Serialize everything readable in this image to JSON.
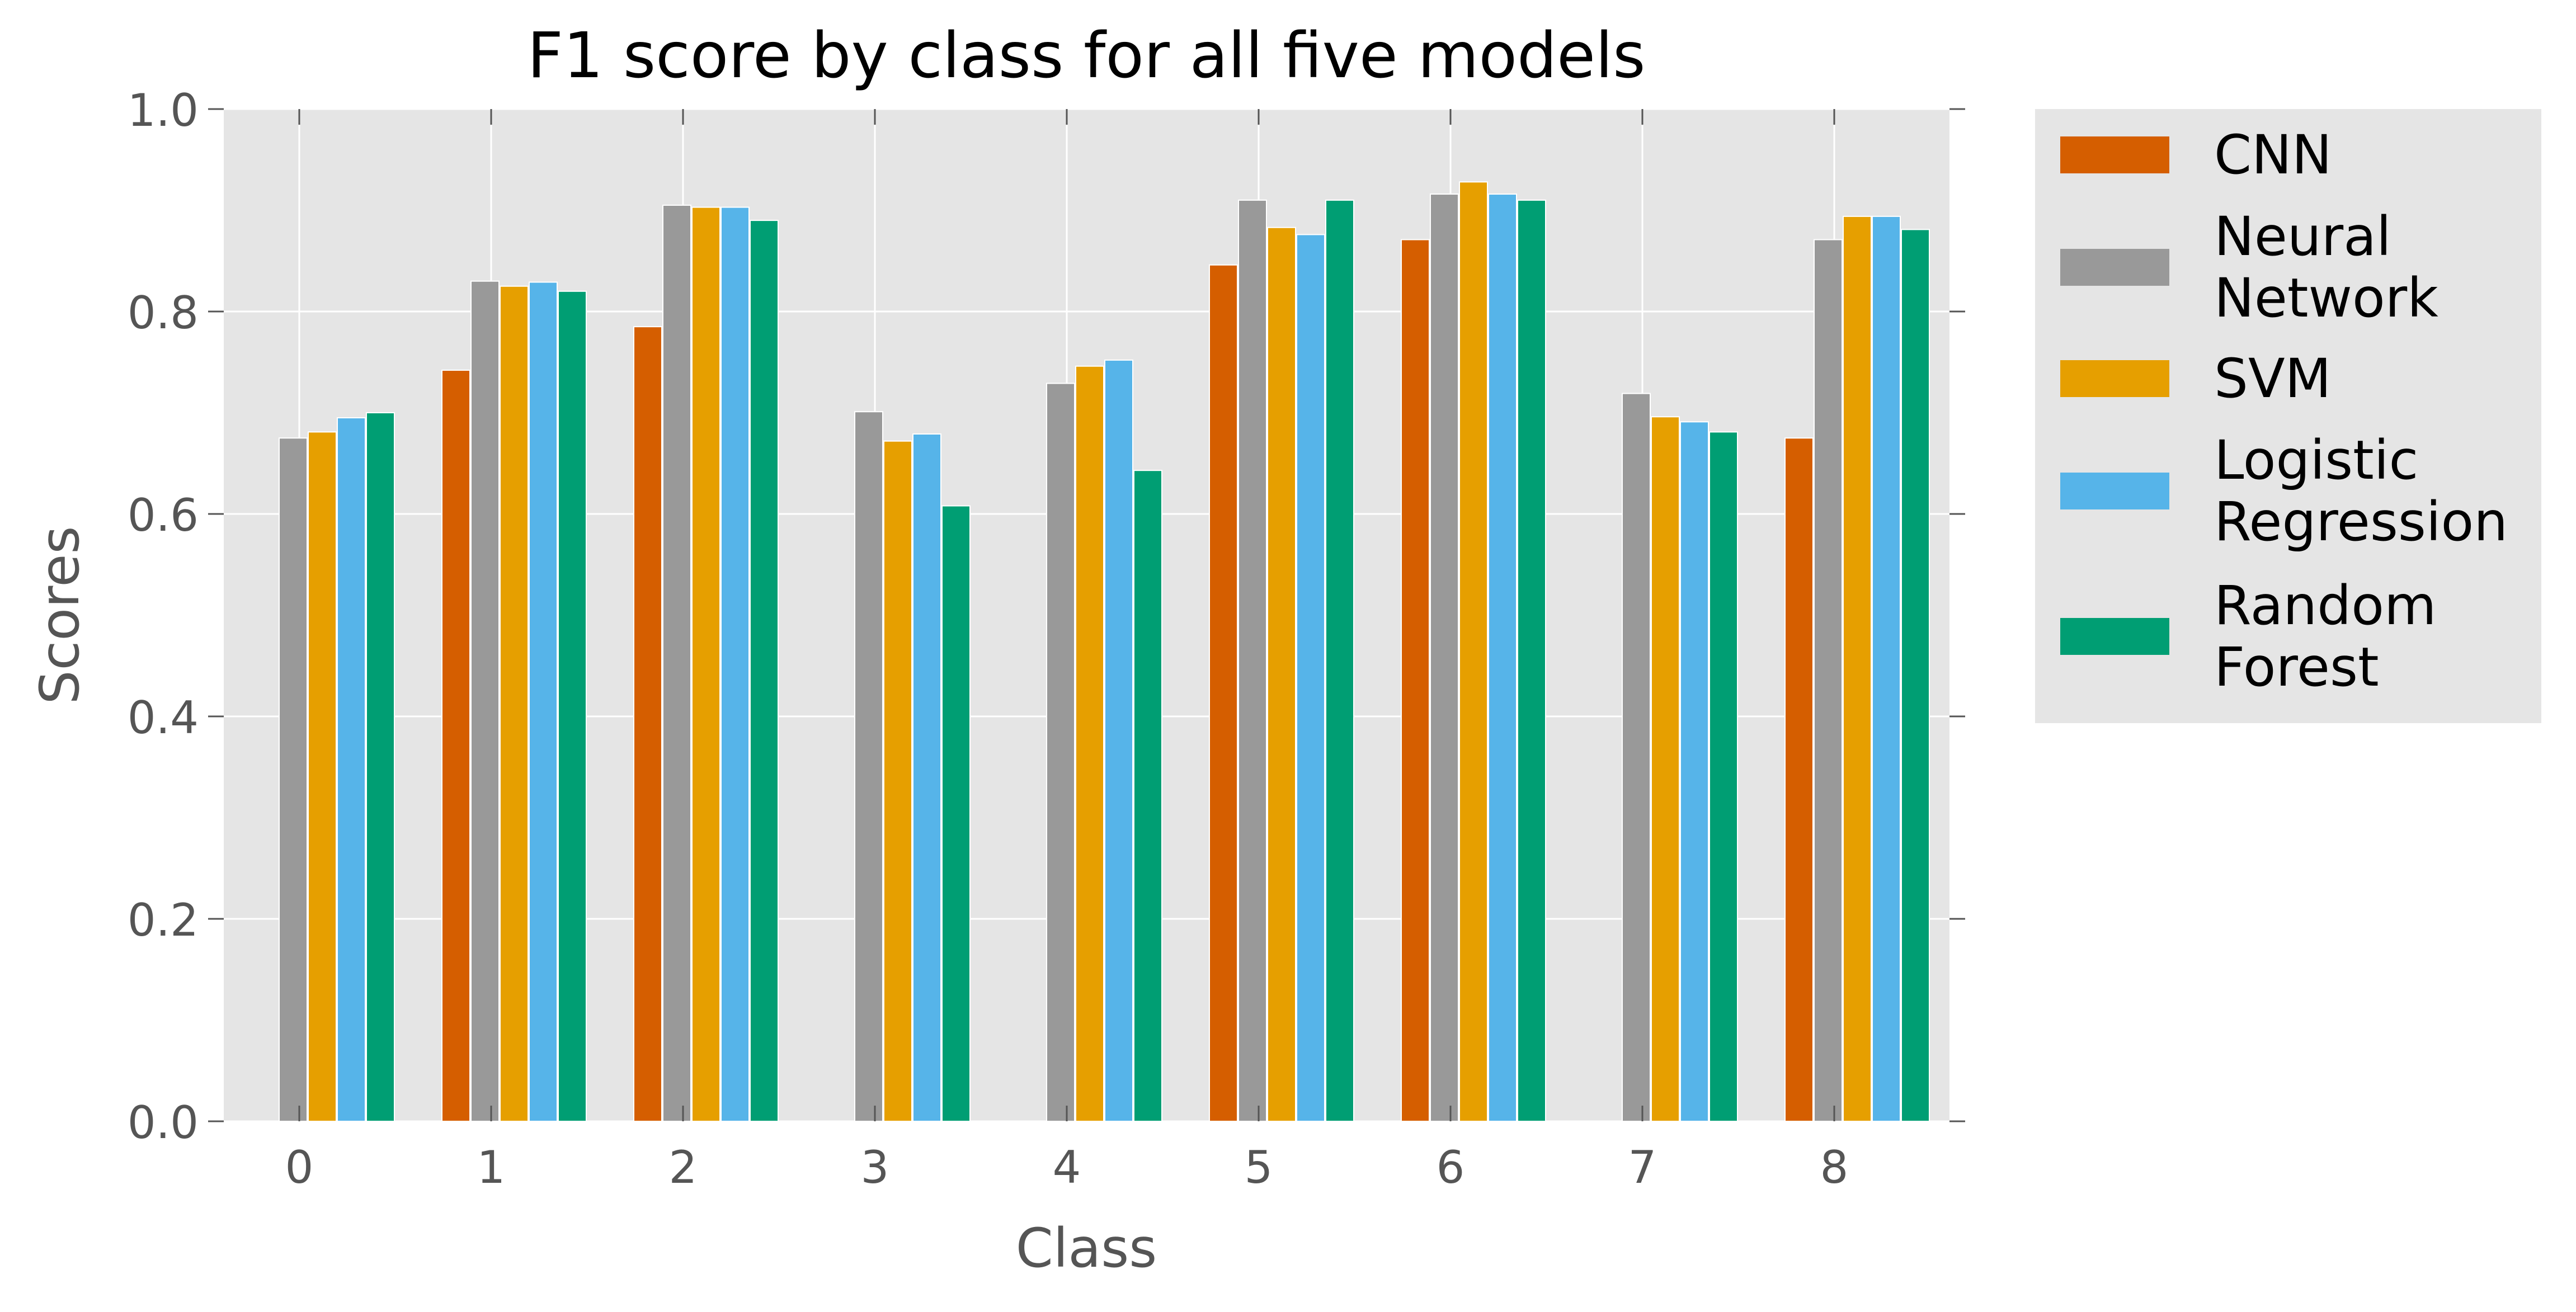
{
  "chart_data": {
    "type": "bar",
    "title": "F1 score by class for all five models",
    "xlabel": "Class",
    "ylabel": "Scores",
    "categories": [
      "0",
      "1",
      "2",
      "3",
      "4",
      "5",
      "6",
      "7",
      "8"
    ],
    "ylim": [
      0,
      1.0
    ],
    "yticks": [
      "0.0",
      "0.2",
      "0.4",
      "0.6",
      "0.8",
      "1.0"
    ],
    "grid": true,
    "legend_position": "outside-right-top",
    "series": [
      {
        "name": "CNN",
        "color": "#d55e00",
        "values": [
          0,
          0.742,
          0.785,
          0,
          0,
          0.846,
          0.871,
          0,
          0.675
        ]
      },
      {
        "name": "Neural Network",
        "color": "#999999",
        "values": [
          0.675,
          0.83,
          0.905,
          0.701,
          0.729,
          0.91,
          0.916,
          0.719,
          0.871
        ]
      },
      {
        "name": "SVM",
        "color": "#e69f00",
        "values": [
          0.681,
          0.825,
          0.903,
          0.672,
          0.746,
          0.883,
          0.928,
          0.696,
          0.894
        ]
      },
      {
        "name": "Logistic Regression",
        "color": "#56b4e9",
        "values": [
          0.695,
          0.829,
          0.903,
          0.679,
          0.752,
          0.876,
          0.916,
          0.691,
          0.894
        ]
      },
      {
        "name": "Random Forest",
        "color": "#009e73",
        "values": [
          0.7,
          0.82,
          0.89,
          0.608,
          0.643,
          0.91,
          0.91,
          0.681,
          0.881
        ]
      }
    ],
    "legend_lines": [
      [
        "CNN"
      ],
      [
        "Neural",
        "Network"
      ],
      [
        "SVM"
      ],
      [
        "Logistic",
        "Regression"
      ],
      [
        "Random",
        "Forest"
      ]
    ]
  }
}
